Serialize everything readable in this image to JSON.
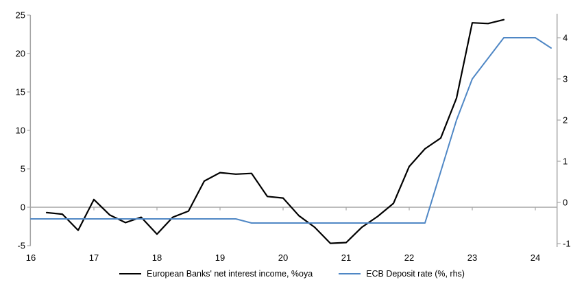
{
  "chart_data": {
    "type": "line",
    "title": "",
    "xlabel": "",
    "ylabel_left": "",
    "ylabel_right": "",
    "grid": "zero-line-only",
    "legend_position": "bottom-center",
    "x_axis": {
      "ticks": [
        16,
        17,
        18,
        19,
        20,
        21,
        22,
        23,
        24
      ],
      "range": [
        16,
        24.35
      ]
    },
    "left_axis": {
      "ticks": [
        25,
        20,
        15,
        10,
        5,
        0,
        -5
      ],
      "range": [
        -5,
        25
      ]
    },
    "right_axis": {
      "ticks": [
        4,
        3,
        2,
        1,
        0,
        -1
      ],
      "range": [
        -1.05,
        4.55
      ]
    },
    "series": [
      {
        "name": "European Banks' net interest income, %oya",
        "axis": "left",
        "color": "#000000",
        "x": [
          16.25,
          16.5,
          16.75,
          17.0,
          17.25,
          17.5,
          17.75,
          18.0,
          18.25,
          18.5,
          18.75,
          19.0,
          19.25,
          19.5,
          19.75,
          20.0,
          20.25,
          20.5,
          20.75,
          21.0,
          21.25,
          21.5,
          21.75,
          22.0,
          22.25,
          22.5,
          22.75,
          23.0,
          23.25,
          23.5
        ],
        "values": [
          -0.7,
          -0.9,
          -3.0,
          1.0,
          -1.0,
          -2.0,
          -1.3,
          -3.5,
          -1.3,
          -0.5,
          3.4,
          4.5,
          4.3,
          4.4,
          1.4,
          1.2,
          -1.1,
          -2.6,
          -4.7,
          -4.6,
          -2.6,
          -1.2,
          0.5,
          5.3,
          7.6,
          9.0,
          14.2,
          24.0,
          23.9,
          24.4
        ]
      },
      {
        "name": "ECB Deposit rate (%, rhs)",
        "axis": "right",
        "color": "#4f87c5",
        "x": [
          16.0,
          16.25,
          16.5,
          16.75,
          17.0,
          17.25,
          17.5,
          17.75,
          18.0,
          18.25,
          18.5,
          18.75,
          19.0,
          19.25,
          19.5,
          19.75,
          20.0,
          20.25,
          20.5,
          20.75,
          21.0,
          21.25,
          21.5,
          21.75,
          22.0,
          22.25,
          22.5,
          22.75,
          23.0,
          23.25,
          23.5,
          23.75,
          24.0,
          24.25
        ],
        "values": [
          -0.4,
          -0.4,
          -0.4,
          -0.4,
          -0.4,
          -0.4,
          -0.4,
          -0.4,
          -0.4,
          -0.4,
          -0.4,
          -0.4,
          -0.4,
          -0.4,
          -0.5,
          -0.5,
          -0.5,
          -0.5,
          -0.5,
          -0.5,
          -0.5,
          -0.5,
          -0.5,
          -0.5,
          -0.5,
          -0.5,
          0.75,
          2.0,
          3.0,
          3.5,
          4.0,
          4.0,
          4.0,
          3.75
        ]
      }
    ]
  },
  "colors": {
    "axis": "#a6a6a6",
    "gridline": "#a6a6a6",
    "background": "#ffffff",
    "tick_label": "#000000"
  }
}
